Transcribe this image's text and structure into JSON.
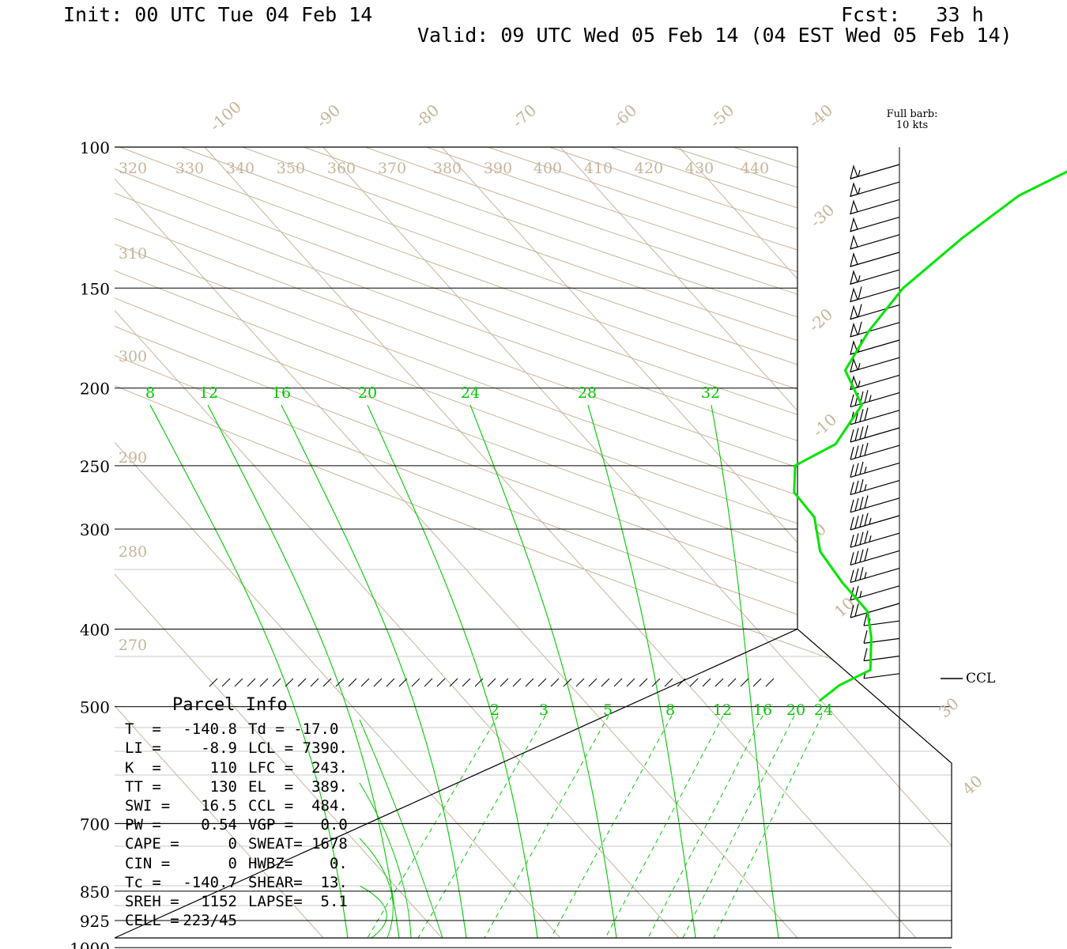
{
  "header": {
    "init": "Init: 00 UTC Tue 04 Feb 14",
    "fcst": "Fcst:   33 h",
    "valid": "Valid: 09 UTC Wed 05 Feb 14 (04 EST Wed 05 Feb 14)"
  },
  "barb_legend": {
    "line1": "Full barb:",
    "line2": "10 kts"
  },
  "ccl_label": "CCL",
  "parcel": {
    "title": "Parcel Info",
    "rows": [
      {
        "k1": "T  =",
        "v1": "-140.8",
        "k2": "Td = -17.0",
        "v2": ""
      },
      {
        "k1": "LI =",
        "v1": "-8.9",
        "k2": "LCL = 7390.",
        "v2": ""
      },
      {
        "k1": "K  =",
        "v1": "110",
        "k2": "LFC =  243.",
        "v2": ""
      },
      {
        "k1": "TT =",
        "v1": "130",
        "k2": "EL  =  389.",
        "v2": ""
      },
      {
        "k1": "SWI =",
        "v1": "16.5",
        "k2": "CCL =  484.",
        "v2": ""
      },
      {
        "k1": "PW =",
        "v1": "0.54",
        "k2": "VGP =   0.0",
        "v2": ""
      },
      {
        "k1": "CAPE =",
        "v1": "0",
        "k2": "SWEAT= 1678",
        "v2": ""
      },
      {
        "k1": "CIN =",
        "v1": "0",
        "k2": "HWBZ=    0.",
        "v2": ""
      },
      {
        "k1": "Tc =",
        "v1": "-140.7",
        "k2": "SHEAR=  13.",
        "v2": ""
      },
      {
        "k1": "SREH =",
        "v1": "1152",
        "k2": "LAPSE=  5.1",
        "v2": ""
      },
      {
        "k1": "CELL =",
        "v1": "223/45",
        "k2": "",
        "v2": ""
      }
    ]
  },
  "chart_data": {
    "type": "line",
    "title": "",
    "ylabel": "",
    "xlabel": "",
    "pressure_levels": [
      100,
      150,
      200,
      250,
      300,
      400,
      500,
      700,
      850,
      925,
      1000
    ],
    "isotherm_labels": [
      "-100",
      "-90",
      "-80",
      "-70",
      "-60",
      "-50",
      "-40",
      "-30",
      "-20",
      "-10",
      "0",
      "10",
      "30",
      "40"
    ],
    "dry_adiabat_labels": [
      "320",
      "330",
      "340",
      "350",
      "360",
      "370",
      "380",
      "390",
      "400",
      "410",
      "420",
      "430",
      "440",
      "310",
      "300",
      "290",
      "280",
      "270"
    ],
    "moist_adiabat_labels": [
      "8",
      "12",
      "16",
      "20",
      "24",
      "28",
      "32"
    ],
    "mixing_ratio_labels": [
      "2",
      "3",
      "5",
      "8",
      "12",
      "16",
      "20",
      "24"
    ],
    "series": [
      {
        "color": "#00e600",
        "points": [
          {
            "p": 100,
            "t": -12.1
          },
          {
            "p": 115,
            "t": -22.2
          },
          {
            "p": 130,
            "t": -28.1
          },
          {
            "p": 150,
            "t": -34.2
          },
          {
            "p": 170,
            "t": -37.8
          },
          {
            "p": 190,
            "t": -40.2
          },
          {
            "p": 210,
            "t": -38.5
          },
          {
            "p": 235,
            "t": -41.2
          },
          {
            "p": 250,
            "t": -45.4
          },
          {
            "p": 270,
            "t": -45.5
          },
          {
            "p": 290,
            "t": -43.4
          },
          {
            "p": 320,
            "t": -42.8
          },
          {
            "p": 350,
            "t": -40.5
          },
          {
            "p": 380,
            "t": -37.9
          },
          {
            "p": 410,
            "t": -37.5
          },
          {
            "p": 450,
            "t": -37.6
          },
          {
            "p": 470,
            "t": -40.8
          },
          {
            "p": 492,
            "t": -42.9
          }
        ]
      }
    ],
    "wind_barbs_kts": [
      55,
      55,
      50,
      50,
      50,
      50,
      55,
      60,
      60,
      60,
      60,
      55,
      55,
      45,
      40,
      40,
      40,
      35,
      35,
      40,
      45,
      45,
      40,
      35,
      25,
      20,
      15,
      10,
      10,
      5
    ],
    "colors": {
      "isopleth": "#c8b49a",
      "moist": "#00c800",
      "trace": "#00e600",
      "grid": "#000000"
    }
  }
}
